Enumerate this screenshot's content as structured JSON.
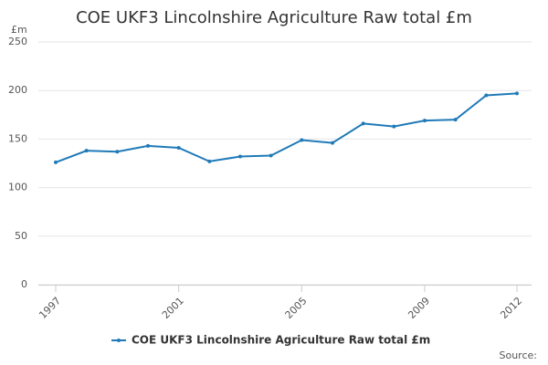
{
  "chart_data": {
    "type": "line",
    "title": "COE UKF3 Lincolnshire Agriculture Raw total £m",
    "y_label": "£m",
    "source": "Source:",
    "x": [
      1997,
      1998,
      1999,
      2000,
      2001,
      2002,
      2003,
      2004,
      2005,
      2006,
      2007,
      2008,
      2009,
      2010,
      2011,
      2012
    ],
    "series": [
      {
        "name": "COE UKF3 Lincolnshire Agriculture Raw total £m",
        "color": "#1f7ab8",
        "values": [
          126,
          138,
          137,
          143,
          141,
          127,
          132,
          133,
          149,
          146,
          166,
          163,
          169,
          170,
          195,
          197
        ]
      }
    ],
    "xlim": [
      1997,
      2012
    ],
    "xticks": [
      1997,
      2001,
      2005,
      2009,
      2012
    ],
    "ylim": [
      0,
      250
    ],
    "yticks": [
      0,
      50,
      100,
      150,
      200,
      250
    ],
    "grid": true
  }
}
